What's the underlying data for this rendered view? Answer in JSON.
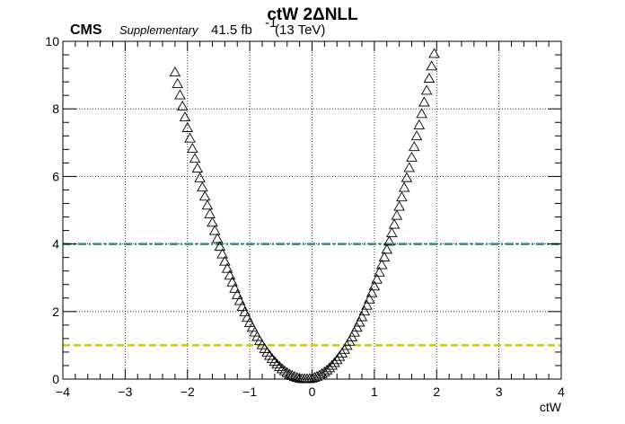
{
  "header": {
    "experiment": "CMS",
    "tag": "Supplementary",
    "lumi": "41.5 fb",
    "lumi_superscript": "-1",
    "energy": "(13 TeV)",
    "title": "ctW 2ΔNLL"
  },
  "chart_data": {
    "type": "scatter",
    "title": "ctW 2ΔNLL",
    "xlabel": "ctW",
    "ylabel": "",
    "xlim": [
      -4,
      4
    ],
    "ylim": [
      0,
      10
    ],
    "grid": true,
    "x_ticks": [
      "−4",
      "−3",
      "−2",
      "−1",
      "0",
      "1",
      "2",
      "3",
      "4"
    ],
    "y_ticks": [
      "0",
      "2",
      "4",
      "6",
      "8",
      "10"
    ],
    "marker": "open-triangle",
    "x_range": [
      -2.2,
      1.96
    ],
    "x_step": 0.04,
    "minimum": {
      "x": -0.1,
      "y": 0.0
    },
    "curvature_left": 2.06,
    "curvature_right": 2.27,
    "reference_lines": [
      {
        "y": 4,
        "color": "#2e8b8b",
        "style": "dash-dot"
      },
      {
        "y": 1,
        "color": "#cccc00",
        "style": "dashed"
      }
    ]
  }
}
